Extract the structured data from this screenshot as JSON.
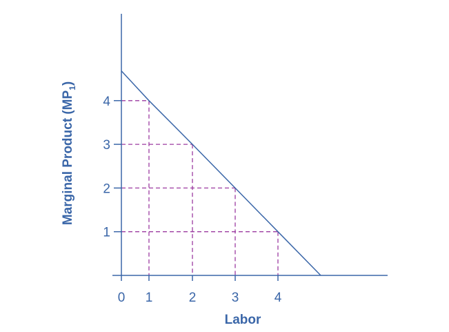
{
  "chart_data": {
    "type": "line",
    "xlabel": "Labor",
    "ylabel": "Marginal Product (MP",
    "ylabel_subscript": "1",
    "ylabel_close": ")",
    "x_ticks": [
      "0",
      "1",
      "2",
      "3",
      "4"
    ],
    "y_ticks": [
      "1",
      "2",
      "3",
      "4"
    ],
    "series": [
      {
        "x": [
          0,
          1,
          2,
          3,
          4,
          5
        ],
        "y": [
          4.68,
          4,
          3,
          2,
          1,
          0
        ]
      }
    ],
    "reference_points": [
      {
        "x": 1,
        "y": 4
      },
      {
        "x": 2,
        "y": 3
      },
      {
        "x": 3,
        "y": 2
      },
      {
        "x": 4,
        "y": 1
      }
    ],
    "grid": false,
    "colors": {
      "axis": "#3a66a8",
      "line": "#3a66a8",
      "dashed": "#9b3aa0"
    }
  }
}
